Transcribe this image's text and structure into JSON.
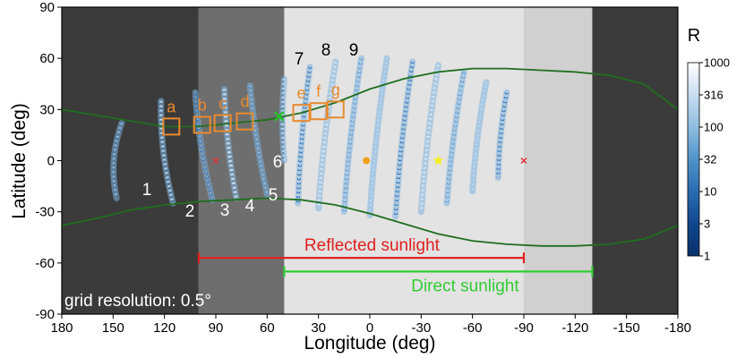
{
  "chart_data": {
    "type": "scatter",
    "xlabel": "Longitude (deg)",
    "ylabel": "Latitude (deg)",
    "xlim": [
      180,
      -180
    ],
    "ylim": [
      -90,
      90
    ],
    "x_ticks": [
      180,
      150,
      120,
      90,
      60,
      30,
      0,
      -30,
      -60,
      -90,
      -120,
      -150,
      -180
    ],
    "y_ticks": [
      90,
      60,
      30,
      0,
      -30,
      -60,
      -90
    ],
    "background_regions": [
      {
        "from": 180,
        "to": 100,
        "color": "#3b3b3b"
      },
      {
        "from": 100,
        "to": 50,
        "color": "#6e6e6e"
      },
      {
        "from": 50,
        "to": -90,
        "color": "#e3e3e3"
      },
      {
        "from": -90,
        "to": -130,
        "color": "#d0d0d0"
      },
      {
        "from": -130,
        "to": -180,
        "color": "#3b3b3b"
      }
    ],
    "terminator_north": [
      [
        180,
        30
      ],
      [
        150,
        25
      ],
      [
        120,
        20
      ],
      [
        100,
        20
      ],
      [
        80,
        22
      ],
      [
        60,
        24
      ],
      [
        40,
        28
      ],
      [
        20,
        34
      ],
      [
        0,
        42
      ],
      [
        -20,
        48
      ],
      [
        -40,
        52
      ],
      [
        -60,
        54
      ],
      [
        -80,
        54
      ],
      [
        -100,
        53
      ],
      [
        -120,
        52
      ],
      [
        -140,
        50
      ],
      [
        -160,
        45
      ],
      [
        -180,
        30
      ]
    ],
    "terminator_south": [
      [
        180,
        -38
      ],
      [
        160,
        -34
      ],
      [
        140,
        -29
      ],
      [
        120,
        -26
      ],
      [
        100,
        -24
      ],
      [
        80,
        -23
      ],
      [
        60,
        -22
      ],
      [
        40,
        -23
      ],
      [
        20,
        -26
      ],
      [
        0,
        -31
      ],
      [
        -20,
        -37
      ],
      [
        -40,
        -43
      ],
      [
        -60,
        -47
      ],
      [
        -80,
        -49
      ],
      [
        -100,
        -50
      ],
      [
        -120,
        -50
      ],
      [
        -140,
        -49
      ],
      [
        -160,
        -46
      ],
      [
        -180,
        -38
      ]
    ],
    "tracks": [
      {
        "label": "1",
        "lon_top": 145,
        "lat_top": 22,
        "lon_bottom": 148,
        "lat_bottom": -22,
        "bulge": 12
      },
      {
        "label": "2",
        "lon_top": 122,
        "lat_top": 35,
        "lon_bottom": 115,
        "lat_bottom": -25,
        "bulge": 8
      },
      {
        "label": "3",
        "lon_top": 102,
        "lat_top": 40,
        "lon_bottom": 92,
        "lat_bottom": -23,
        "bulge": 6
      },
      {
        "label": "4",
        "lon_top": 85,
        "lat_top": 42,
        "lon_bottom": 78,
        "lat_bottom": -22,
        "bulge": 5
      },
      {
        "label": "5",
        "lon_top": 70,
        "lat_top": 44,
        "lon_bottom": 60,
        "lat_bottom": -20,
        "bulge": 4
      },
      {
        "label": "6",
        "lon_top": 50,
        "lat_top": 48,
        "lon_bottom": 50,
        "lat_bottom": 0,
        "bulge": 4
      },
      {
        "label": "7",
        "lon_top": 35,
        "lat_top": 55,
        "lon_bottom": 42,
        "lat_bottom": -25,
        "bulge": 4
      },
      {
        "label": "8",
        "lon_top": 20,
        "lat_top": 58,
        "lon_bottom": 30,
        "lat_bottom": -28,
        "bulge": 4
      },
      {
        "label": "9",
        "lon_top": 5,
        "lat_top": 60,
        "lon_bottom": 15,
        "lat_bottom": -30,
        "bulge": 4
      },
      {
        "label": "",
        "lon_top": -10,
        "lat_top": 60,
        "lon_bottom": 0,
        "lat_bottom": -32,
        "bulge": 4
      },
      {
        "label": "",
        "lon_top": -25,
        "lat_top": 58,
        "lon_bottom": -15,
        "lat_bottom": -33,
        "bulge": 4
      },
      {
        "label": "",
        "lon_top": -40,
        "lat_top": 56,
        "lon_bottom": -30,
        "lat_bottom": -30,
        "bulge": 4
      },
      {
        "label": "",
        "lon_top": -55,
        "lat_top": 52,
        "lon_bottom": -45,
        "lat_bottom": -25,
        "bulge": 4
      },
      {
        "label": "",
        "lon_top": -68,
        "lat_top": 46,
        "lon_bottom": -60,
        "lat_bottom": -18,
        "bulge": 4
      },
      {
        "label": "",
        "lon_top": -80,
        "lat_top": 40,
        "lon_bottom": -75,
        "lat_bottom": -10,
        "bulge": 4
      }
    ],
    "boxes": [
      {
        "label": "a",
        "lon": 116,
        "lat": 20
      },
      {
        "label": "b",
        "lon": 98,
        "lat": 21
      },
      {
        "label": "c",
        "lon": 86,
        "lat": 22
      },
      {
        "label": "d",
        "lon": 73,
        "lat": 23
      },
      {
        "label": "e",
        "lon": 40,
        "lat": 28
      },
      {
        "label": "f",
        "lon": 30,
        "lat": 29
      },
      {
        "label": "g",
        "lon": 20,
        "lat": 30
      }
    ],
    "markers": [
      {
        "name": "green-x",
        "shape": "x",
        "lon": 53,
        "lat": 26,
        "color": "#22c322",
        "size": "large"
      },
      {
        "name": "red-x-left",
        "shape": "x",
        "lon": 90,
        "lat": 0,
        "color": "#e03030",
        "size": "small"
      },
      {
        "name": "red-x-right",
        "shape": "x",
        "lon": -90,
        "lat": 0,
        "color": "#e03030",
        "size": "small"
      },
      {
        "name": "orange-dot",
        "shape": "dot",
        "lon": 2,
        "lat": 0,
        "color": "#f0a020",
        "size": "small"
      },
      {
        "name": "yellow-star",
        "shape": "star",
        "lon": -40,
        "lat": 0,
        "color": "#f5f01e",
        "size": "small"
      }
    ],
    "ranges": [
      {
        "label": "Reflected sunlight",
        "from": 100,
        "to": -90,
        "lat": -57,
        "color": "#e02020"
      },
      {
        "label": "Direct sunlight",
        "from": 50,
        "to": -130,
        "lat": -65,
        "color": "#33cc33"
      }
    ],
    "annotation": "grid resolution: 0.5°",
    "colorbar": {
      "title": "R",
      "scale": "log",
      "ticks": [
        "1000",
        "316",
        "100",
        "32",
        "10",
        "3",
        "1"
      ],
      "colors": [
        "#ffffff",
        "#c8ddf0",
        "#8fbde0",
        "#4f93c9",
        "#2a6db0",
        "#11478e",
        "#08306b"
      ]
    },
    "colors": {
      "box": "#e88a2e",
      "terminator": "#1f6e1f",
      "track_label_dark": "#ffffff",
      "track_label_light": "#000000"
    }
  }
}
